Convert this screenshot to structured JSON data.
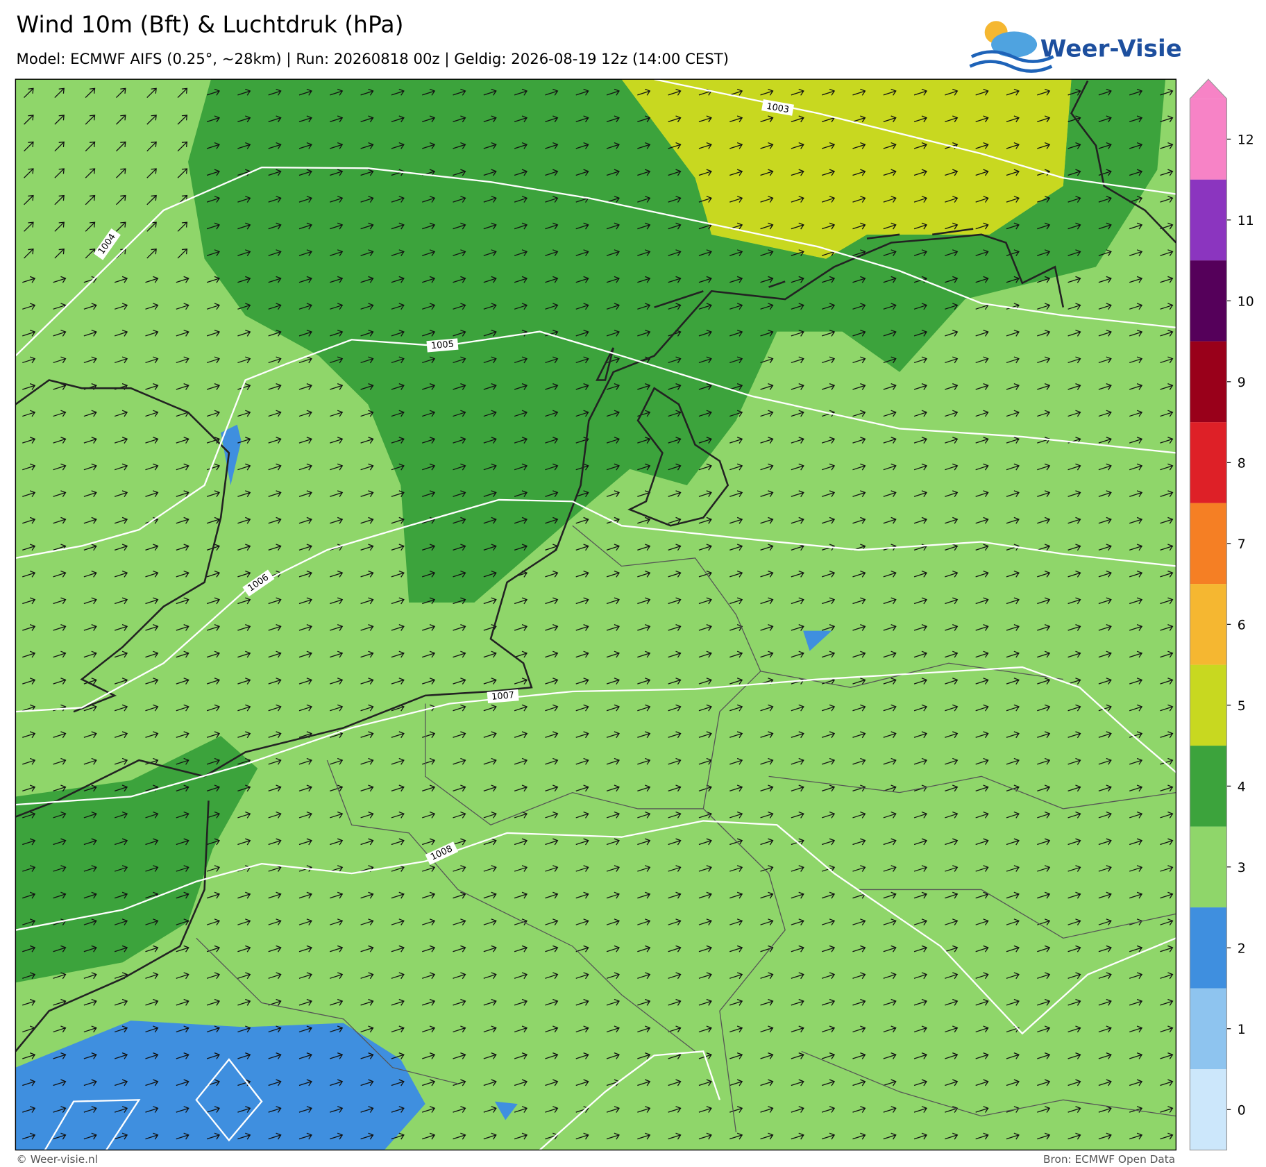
{
  "header": {
    "title": "Wind 10m (Bft) & Luchtdruk (hPa)",
    "subtitle": "Model: ECMWF AIFS (0.25°, ~28km)  |  Run: 20260818 00z  |  Geldig: 2026-08-19 12z (14:00 CEST)"
  },
  "logo": {
    "text": "Weer-Visie"
  },
  "isobars": [
    {
      "label": "1003"
    },
    {
      "label": "1004"
    },
    {
      "label": "1005"
    },
    {
      "label": "1006"
    },
    {
      "label": "1007"
    },
    {
      "label": "1008"
    }
  ],
  "legend": {
    "items": [
      {
        "label": "0",
        "color": "#cce7fb"
      },
      {
        "label": "1",
        "color": "#8ec4ef"
      },
      {
        "label": "2",
        "color": "#3f8fdf"
      },
      {
        "label": "3",
        "color": "#8fd66a"
      },
      {
        "label": "4",
        "color": "#3ca33c"
      },
      {
        "label": "5",
        "color": "#c8d820"
      },
      {
        "label": "6",
        "color": "#f5b731"
      },
      {
        "label": "7",
        "color": "#f57f24"
      },
      {
        "label": "8",
        "color": "#de2027"
      },
      {
        "label": "9",
        "color": "#99001a"
      },
      {
        "label": "10",
        "color": "#55005a"
      },
      {
        "label": "11",
        "color": "#8b35bf"
      },
      {
        "label": "12",
        "color": "#f783c6"
      }
    ]
  },
  "footer": {
    "left": "© Weer-visie.nl",
    "right": "Bron: ECMWF Open Data"
  }
}
